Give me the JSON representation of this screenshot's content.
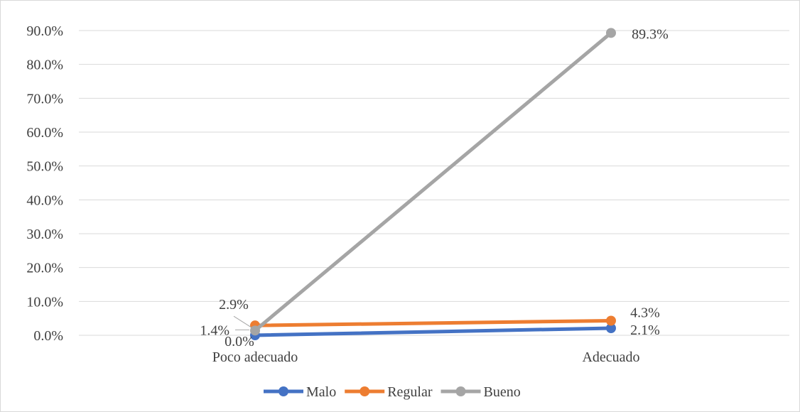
{
  "chart_data": {
    "type": "line",
    "categories": [
      "Poco adecuado",
      "Adecuado"
    ],
    "y_ticks": [
      "0.0%",
      "10.0%",
      "20.0%",
      "30.0%",
      "40.0%",
      "50.0%",
      "60.0%",
      "70.0%",
      "80.0%",
      "90.0%"
    ],
    "ylim": [
      0,
      90
    ],
    "y_unit": "%",
    "grid": true,
    "legend_position": "bottom",
    "series": [
      {
        "name": "Malo",
        "values": [
          0.0,
          2.1
        ],
        "labels": [
          "0.0%",
          "2.1%"
        ],
        "color": "#4472c4"
      },
      {
        "name": "Regular",
        "values": [
          2.9,
          4.3
        ],
        "labels": [
          "2.9%",
          "4.3%"
        ],
        "color": "#ed7d31"
      },
      {
        "name": "Bueno",
        "values": [
          1.4,
          89.3
        ],
        "labels": [
          "1.4%",
          "89.3%"
        ],
        "color": "#a5a5a5"
      }
    ]
  }
}
